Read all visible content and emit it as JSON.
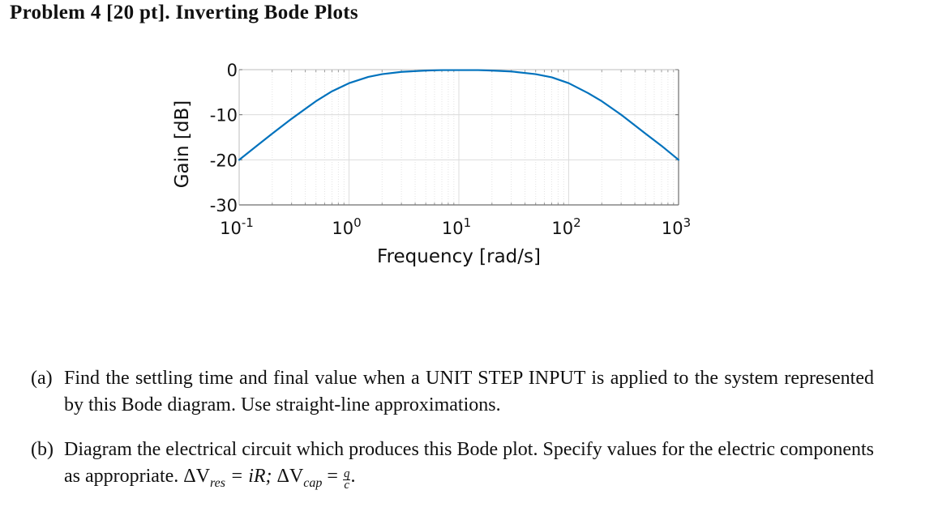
{
  "header": {
    "title": "Problem 4 [20 pt]. Inverting Bode Plots"
  },
  "chart_data": {
    "type": "line",
    "title": "",
    "xlabel": "Frequency [rad/s]",
    "ylabel": "Gain [dB]",
    "xscale": "log",
    "xlim": [
      0.1,
      1000
    ],
    "ylim": [
      -30,
      0
    ],
    "x_ticks": [
      {
        "base": "10",
        "exp": "-1",
        "value": 0.1
      },
      {
        "base": "10",
        "exp": "0",
        "value": 1
      },
      {
        "base": "10",
        "exp": "1",
        "value": 10
      },
      {
        "base": "10",
        "exp": "2",
        "value": 100
      },
      {
        "base": "10",
        "exp": "3",
        "value": 1000
      }
    ],
    "y_ticks": [
      {
        "label": "0",
        "value": 0
      },
      {
        "label": "-10",
        "value": -10
      },
      {
        "label": "-20",
        "value": -20
      },
      {
        "label": "-30",
        "value": -30
      }
    ],
    "grid": true,
    "minor_grid": true,
    "legend": null,
    "line_color": "#0072BD",
    "series": [
      {
        "name": "Gain",
        "x": [
          0.1,
          0.15,
          0.2,
          0.3,
          0.5,
          0.7,
          1,
          1.5,
          2,
          3,
          5,
          7,
          10,
          15,
          20,
          30,
          50,
          70,
          100,
          150,
          200,
          300,
          500,
          700,
          1000
        ],
        "y": [
          -20.0,
          -16.6,
          -14.2,
          -10.9,
          -7.0,
          -4.8,
          -3.0,
          -1.6,
          -1.0,
          -0.5,
          -0.2,
          -0.1,
          -0.1,
          -0.1,
          -0.2,
          -0.4,
          -1.0,
          -1.7,
          -3.0,
          -5.2,
          -7.0,
          -10.0,
          -14.2,
          -16.9,
          -20.0
        ]
      }
    ],
    "annotations": []
  },
  "questions": [
    {
      "label": "(a)",
      "text": "Find the settling time and final value when a UNIT STEP INPUT is applied to the system represented by this Bode diagram. Use straight-line approximations."
    },
    {
      "label": "(b)",
      "text": "Diagram the electrical circuit which produces this Bode plot. Specify values for the electric components as appropriate.",
      "formula": {
        "delta": "ΔV",
        "res_sub": "res",
        "eq1": " = iR; ",
        "cap_sub": "cap",
        "eq2": " = ",
        "frac_num": "q",
        "frac_den": "c",
        "end": "."
      }
    }
  ]
}
